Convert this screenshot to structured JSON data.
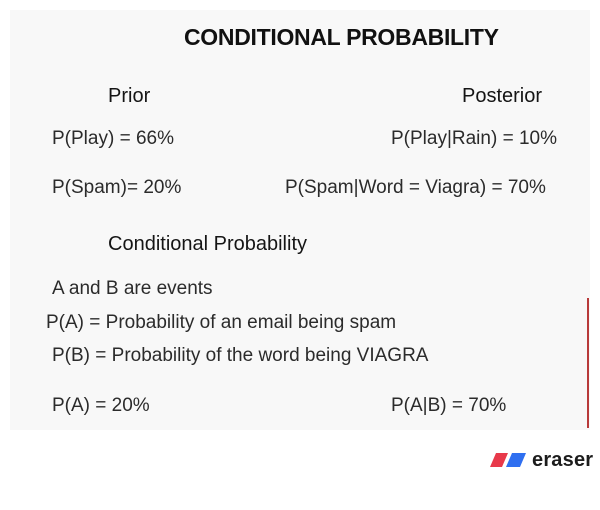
{
  "title": "CONDITIONAL PROBABILITY",
  "prior": {
    "heading": "Prior",
    "play": "P(Play)  = 66%",
    "spam": "P(Spam)= 20%"
  },
  "posterior": {
    "heading": "Posterior",
    "play_rain": "P(Play|Rain)  = 10%",
    "spam_word": "P(Spam|Word = Viagra)  = 70%"
  },
  "conditional": {
    "heading": "Conditional Probability",
    "events": "A and B are events",
    "pa_def": "P(A) = Probability of an email being spam",
    "pb_def": "P(B) = Probability of the word being VIAGRA",
    "pa_value": "P(A) = 20%",
    "pab_value": "P(A|B)  = 70%"
  },
  "brand": {
    "name": "eraser",
    "colors": {
      "red": "#e8394a",
      "blue": "#2f6ff0"
    },
    "icon": "eraser-logo-icon"
  }
}
